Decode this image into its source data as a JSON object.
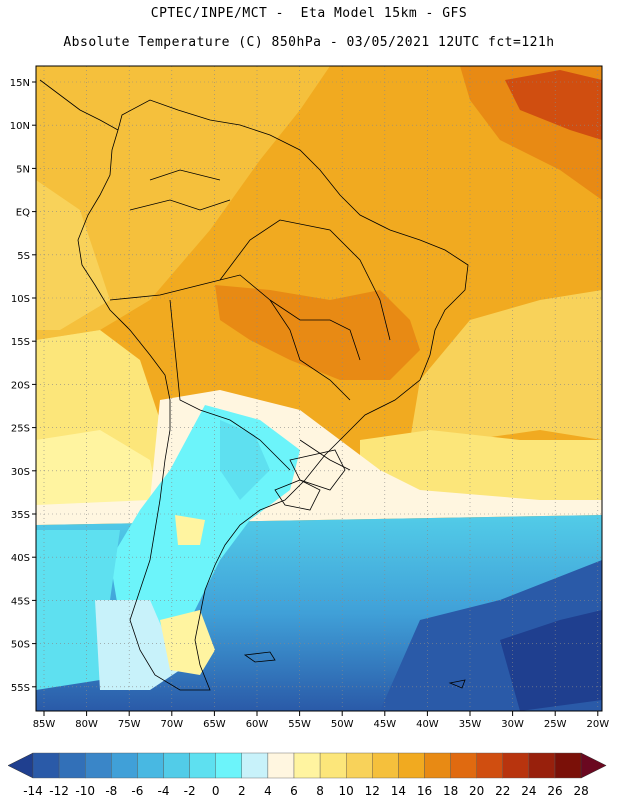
{
  "header": {
    "line1": "CPTEC/INPE/MCT -  Eta Model 15km - GFS",
    "line2": "Absolute Temperature (C) 850hPa - 03/05/2021 12UTC fct=121h"
  },
  "map": {
    "lon_labels": [
      "85W",
      "80W",
      "75W",
      "70W",
      "65W",
      "60W",
      "55W",
      "50W",
      "45W",
      "40W",
      "35W",
      "30W",
      "25W",
      "20W"
    ],
    "lat_labels": [
      "15N",
      "10N",
      "5N",
      "EQ",
      "5S",
      "10S",
      "15S",
      "20S",
      "25S",
      "30S",
      "35S",
      "40S",
      "45S",
      "50S",
      "55S"
    ],
    "gridlines": "dotted"
  },
  "colorbar": {
    "labels": [
      "-14",
      "-12",
      "-10",
      "-8",
      "-6",
      "-4",
      "-2",
      "0",
      "2",
      "4",
      "6",
      "8",
      "10",
      "12",
      "14",
      "16",
      "18",
      "20",
      "22",
      "24",
      "26",
      "28"
    ],
    "colors": [
      "#1f3f8f",
      "#2a5aa8",
      "#3270b8",
      "#3a86c8",
      "#40a0d8",
      "#48b8e2",
      "#52cce8",
      "#5ee0f0",
      "#6cf4fa",
      "#c8f2fa",
      "#fff6e0",
      "#fff4a0",
      "#fce67a",
      "#f8d25a",
      "#f5c03c",
      "#f1aa20",
      "#e88a14",
      "#e06a10",
      "#d04e10",
      "#b8340e",
      "#98200c",
      "#7a1008",
      "#6a0820"
    ]
  }
}
